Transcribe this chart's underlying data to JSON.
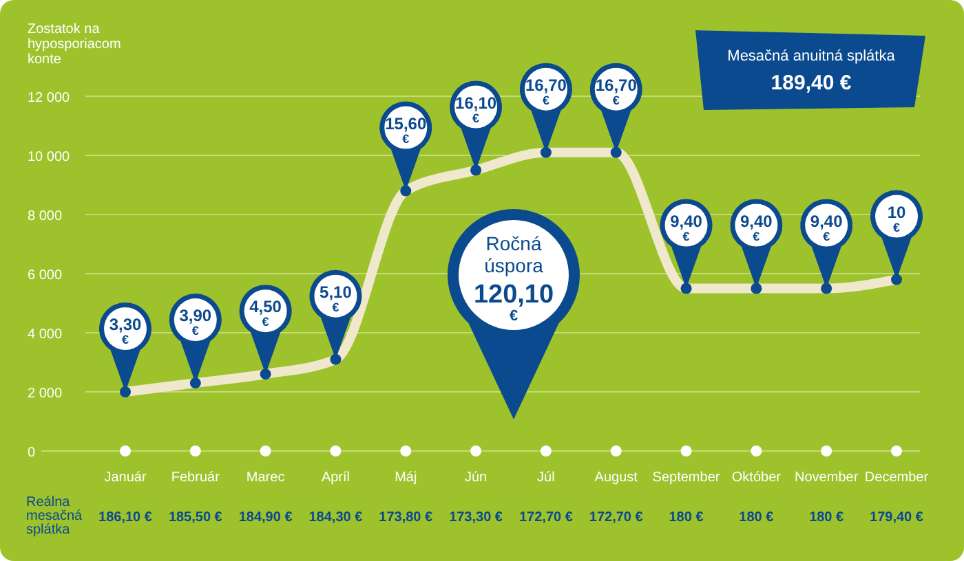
{
  "chart_data": {
    "type": "line",
    "title": "Mesačná anuitná splátka",
    "subtitle": "189,40 €",
    "ylabel": "Zostatok na hyposporiacom konte",
    "categories": [
      "Január",
      "Február",
      "Marec",
      "Apríl",
      "Máj",
      "Jún",
      "Júl",
      "August",
      "September",
      "Október",
      "November",
      "December"
    ],
    "series": [
      {
        "color": "#efe8cc",
        "values": [
          2000,
          2300,
          2600,
          3100,
          8800,
          9500,
          10100,
          10100,
          5500,
          5500,
          5500,
          5800
        ]
      }
    ],
    "ylim": [
      0,
      12000
    ],
    "yticks": [
      {
        "value": 0,
        "label": "0"
      },
      {
        "value": 2000,
        "label": "2 000"
      },
      {
        "value": 4000,
        "label": "4 000"
      },
      {
        "value": 6000,
        "label": "6 000"
      },
      {
        "value": 8000,
        "label": "8 000"
      },
      {
        "value": 10000,
        "label": "10 000"
      },
      {
        "value": 12000,
        "label": "12 000"
      }
    ],
    "grid": "y",
    "marker": "circle",
    "annotations": [
      "Ročná úspora 120,10 €",
      "Reálna mesačná splátka",
      "186,10 €",
      "185,50 €",
      "184,90 €",
      "184,30 €",
      "173,80 €",
      "173,30 €",
      "172,70 €",
      "172,70 €",
      "180 €",
      "180 €",
      "180 €",
      "179,40 €",
      {
        "text": "3,30 €",
        "x": "Január",
        "y": 2000
      },
      {
        "text": "3,90 €",
        "x": "Február",
        "y": 2300
      },
      {
        "text": "4,50 €",
        "x": "Marec",
        "y": 2600
      },
      {
        "text": "5,10 €",
        "x": "Apríl",
        "y": 3100
      },
      {
        "text": "15,60 €",
        "x": "Máj",
        "y": 8800
      },
      {
        "text": "16,10 €",
        "x": "Jún",
        "y": 9500
      },
      {
        "text": "16,70 €",
        "x": "Júl",
        "y": 10100
      },
      {
        "text": "16,70 €",
        "x": "August",
        "y": 10100
      },
      {
        "text": "9,40 €",
        "x": "September",
        "y": 5500
      },
      {
        "text": "9,40 €",
        "x": "Október",
        "y": 5500
      },
      {
        "text": "9,40 €",
        "x": "November",
        "y": 5500
      },
      {
        "text": "10 €",
        "x": "December",
        "y": 5800
      }
    ]
  }
}
